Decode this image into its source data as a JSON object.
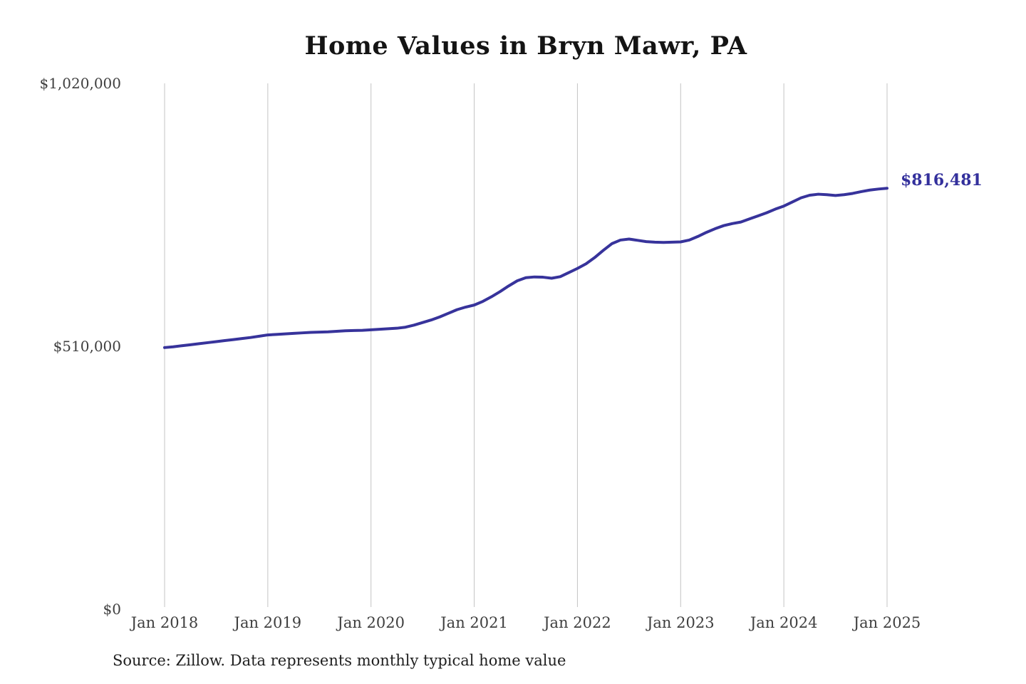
{
  "page": {
    "background": "#ffffff"
  },
  "chart": {
    "title": "Home Values in Bryn Mawr, PA",
    "end_label": "$816,481",
    "source_note": "Source: Zillow. Data represents monthly typical home value"
  },
  "chart_data": {
    "type": "line",
    "title": "Home Values in Bryn Mawr, PA",
    "series_name": "Monthly typical home value",
    "x_interval": "monthly",
    "x_start": "Jan 2018",
    "x_end": "Jan 2025",
    "x_tick_labels": [
      "Jan 2018",
      "Jan 2019",
      "Jan 2020",
      "Jan 2021",
      "Jan 2022",
      "Jan 2023",
      "Jan 2024",
      "Jan 2025"
    ],
    "y_tick_labels": [
      "$0",
      "$510,000",
      "$1,020,000"
    ],
    "y_tick_values": [
      0,
      510000,
      1020000
    ],
    "ylim": [
      0,
      1020000
    ],
    "grid": "vertical-only",
    "legend": "none",
    "line_color": "#37339b",
    "end_label_color": "#33309c",
    "gridline_color": "#c4c4c4",
    "final_value": 816481,
    "final_value_label": "$816,481",
    "values": [
      507500,
      509000,
      511000,
      513000,
      515000,
      517000,
      519000,
      521000,
      523000,
      525000,
      527000,
      529500,
      532000,
      533000,
      534000,
      535000,
      536000,
      537000,
      537500,
      538000,
      539000,
      540000,
      540500,
      541000,
      542000,
      543000,
      544000,
      545000,
      547000,
      551000,
      556000,
      561000,
      567000,
      574000,
      581000,
      586000,
      590000,
      597000,
      606000,
      616000,
      627000,
      637000,
      643000,
      644500,
      644000,
      642000,
      645000,
      653000,
      661000,
      670000,
      682000,
      696000,
      709000,
      716000,
      718000,
      715500,
      713000,
      712000,
      711500,
      712000,
      712500,
      716000,
      723000,
      731000,
      738000,
      744000,
      748000,
      751000,
      757000,
      763000,
      769000,
      776000,
      782000,
      790000,
      798000,
      803000,
      805000,
      804000,
      802500,
      804000,
      806500,
      810000,
      813000,
      815000,
      816481
    ]
  }
}
